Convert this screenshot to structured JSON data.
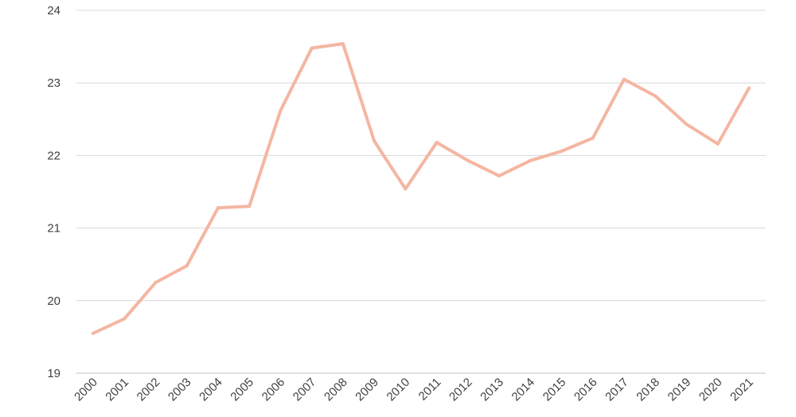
{
  "chart_data": {
    "type": "line",
    "title": "",
    "xlabel": "",
    "ylabel": "",
    "categories": [
      "2000",
      "2001",
      "2002",
      "2003",
      "2004",
      "2005",
      "2006",
      "2007",
      "2008",
      "2009",
      "2010",
      "2011",
      "2012",
      "2013",
      "2014",
      "2015",
      "2016",
      "2017",
      "2018",
      "2019",
      "2020",
      "2021"
    ],
    "series": [
      {
        "name": "",
        "color": "#f4b6a2",
        "values": [
          19.55,
          19.75,
          20.25,
          20.48,
          21.28,
          21.3,
          22.62,
          23.48,
          23.54,
          22.2,
          21.54,
          22.18,
          21.93,
          21.72,
          21.93,
          22.06,
          22.24,
          23.05,
          22.82,
          22.43,
          22.16,
          22.93
        ]
      }
    ],
    "ylim": [
      19,
      24
    ],
    "yticks": [
      19,
      20,
      21,
      22,
      23,
      24
    ],
    "grid": true,
    "legend": "none"
  }
}
